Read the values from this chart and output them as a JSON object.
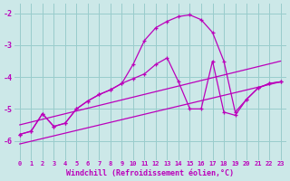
{
  "background_color": "#cce8e8",
  "grid_color": "#99cccc",
  "line_color": "#bb00bb",
  "xlabel": "Windchill (Refroidissement éolien,°C)",
  "xlabel_color": "#bb00bb",
  "xlim": [
    -0.5,
    23.5
  ],
  "ylim": [
    -6.6,
    -1.7
  ],
  "yticks": [
    -6,
    -5,
    -4,
    -3,
    -2
  ],
  "xticks": [
    0,
    1,
    2,
    3,
    4,
    5,
    6,
    7,
    8,
    9,
    10,
    11,
    12,
    13,
    14,
    15,
    16,
    17,
    18,
    19,
    20,
    21,
    22,
    23
  ],
  "curve_upper_x": [
    0,
    1,
    2,
    3,
    4,
    5,
    6,
    7,
    8,
    9,
    10,
    11,
    12,
    13,
    14,
    15,
    16,
    17,
    18,
    19,
    20,
    21,
    22,
    23
  ],
  "curve_upper_y": [
    -5.8,
    -5.7,
    -5.15,
    -5.55,
    -5.45,
    -5.0,
    -4.75,
    -4.55,
    -4.4,
    -4.2,
    -3.6,
    -2.85,
    -2.45,
    -2.25,
    -2.1,
    -2.05,
    -2.2,
    -2.6,
    -3.5,
    -5.1,
    -4.7,
    -4.35,
    -4.2,
    -4.15
  ],
  "curve_lower_x": [
    0,
    1,
    2,
    3,
    4,
    5,
    6,
    7,
    8,
    9,
    10,
    11,
    12,
    13,
    14,
    15,
    16,
    17,
    18,
    19,
    20,
    21,
    22,
    23
  ],
  "curve_lower_y": [
    -5.8,
    -5.7,
    -5.15,
    -5.55,
    -5.45,
    -5.0,
    -4.75,
    -4.55,
    -4.4,
    -4.2,
    -4.05,
    -3.9,
    -3.6,
    -3.4,
    -4.15,
    -5.0,
    -5.0,
    -3.5,
    -5.1,
    -5.2,
    -4.7,
    -4.35,
    -4.2,
    -4.15
  ],
  "line1_x": [
    0,
    23
  ],
  "line1_y": [
    -5.5,
    -3.5
  ],
  "line2_x": [
    0,
    23
  ],
  "line2_y": [
    -6.1,
    -4.15
  ]
}
